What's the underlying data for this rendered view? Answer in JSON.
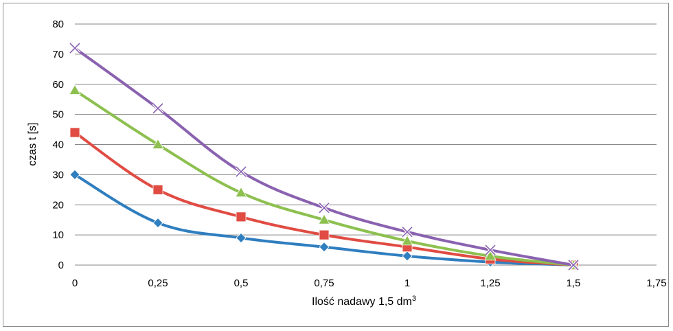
{
  "chart_data": {
    "type": "line",
    "xlabel": "Ilość nadawy 1,5 dm",
    "xlabel_sup": "3",
    "ylabel": "czas t [s]",
    "x": [
      0,
      0.25,
      0.5,
      0.75,
      1,
      1.25,
      1.5
    ],
    "x_ticks": [
      "0",
      "0,25",
      "0,5",
      "0,75",
      "1",
      "1,25",
      "1,5",
      "1,75"
    ],
    "y_ticks": [
      "0",
      "10",
      "20",
      "30",
      "40",
      "50",
      "60",
      "70",
      "80"
    ],
    "xlim": [
      0,
      1.75
    ],
    "ylim": [
      0,
      80
    ],
    "grid": "horizontal",
    "series": [
      {
        "color": "#2f7ebf",
        "marker": "diamond",
        "values": [
          30,
          14,
          9,
          6,
          3,
          1,
          0
        ]
      },
      {
        "color": "#e04c43",
        "marker": "square",
        "values": [
          44,
          25,
          16,
          10,
          6,
          2,
          0
        ]
      },
      {
        "color": "#8dc04f",
        "marker": "triangle",
        "values": [
          58,
          40,
          24,
          15,
          8,
          3,
          0
        ]
      },
      {
        "color": "#8a62b0",
        "marker": "x",
        "values": [
          72,
          52,
          31,
          19,
          11,
          5,
          0
        ]
      }
    ]
  }
}
